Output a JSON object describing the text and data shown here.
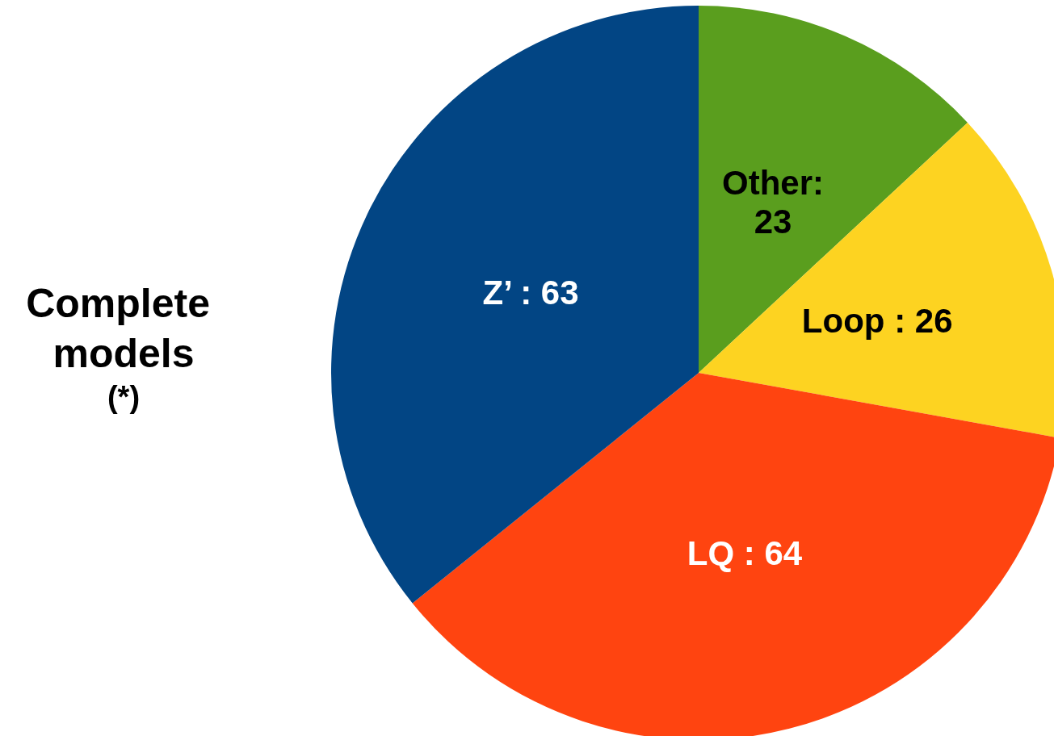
{
  "chart_data": {
    "type": "pie",
    "title": "Complete models",
    "subtitle": "(*)",
    "categories": [
      "Other",
      "Loop",
      "LQ",
      "Z’"
    ],
    "values": [
      23,
      26,
      64,
      63
    ],
    "colors": [
      "#5a9e1e",
      "#fdd321",
      "#ff4410",
      "#024584"
    ],
    "value_labels": [
      ":\n23",
      ": 26",
      ": 64",
      ": 63"
    ],
    "legend": false
  }
}
